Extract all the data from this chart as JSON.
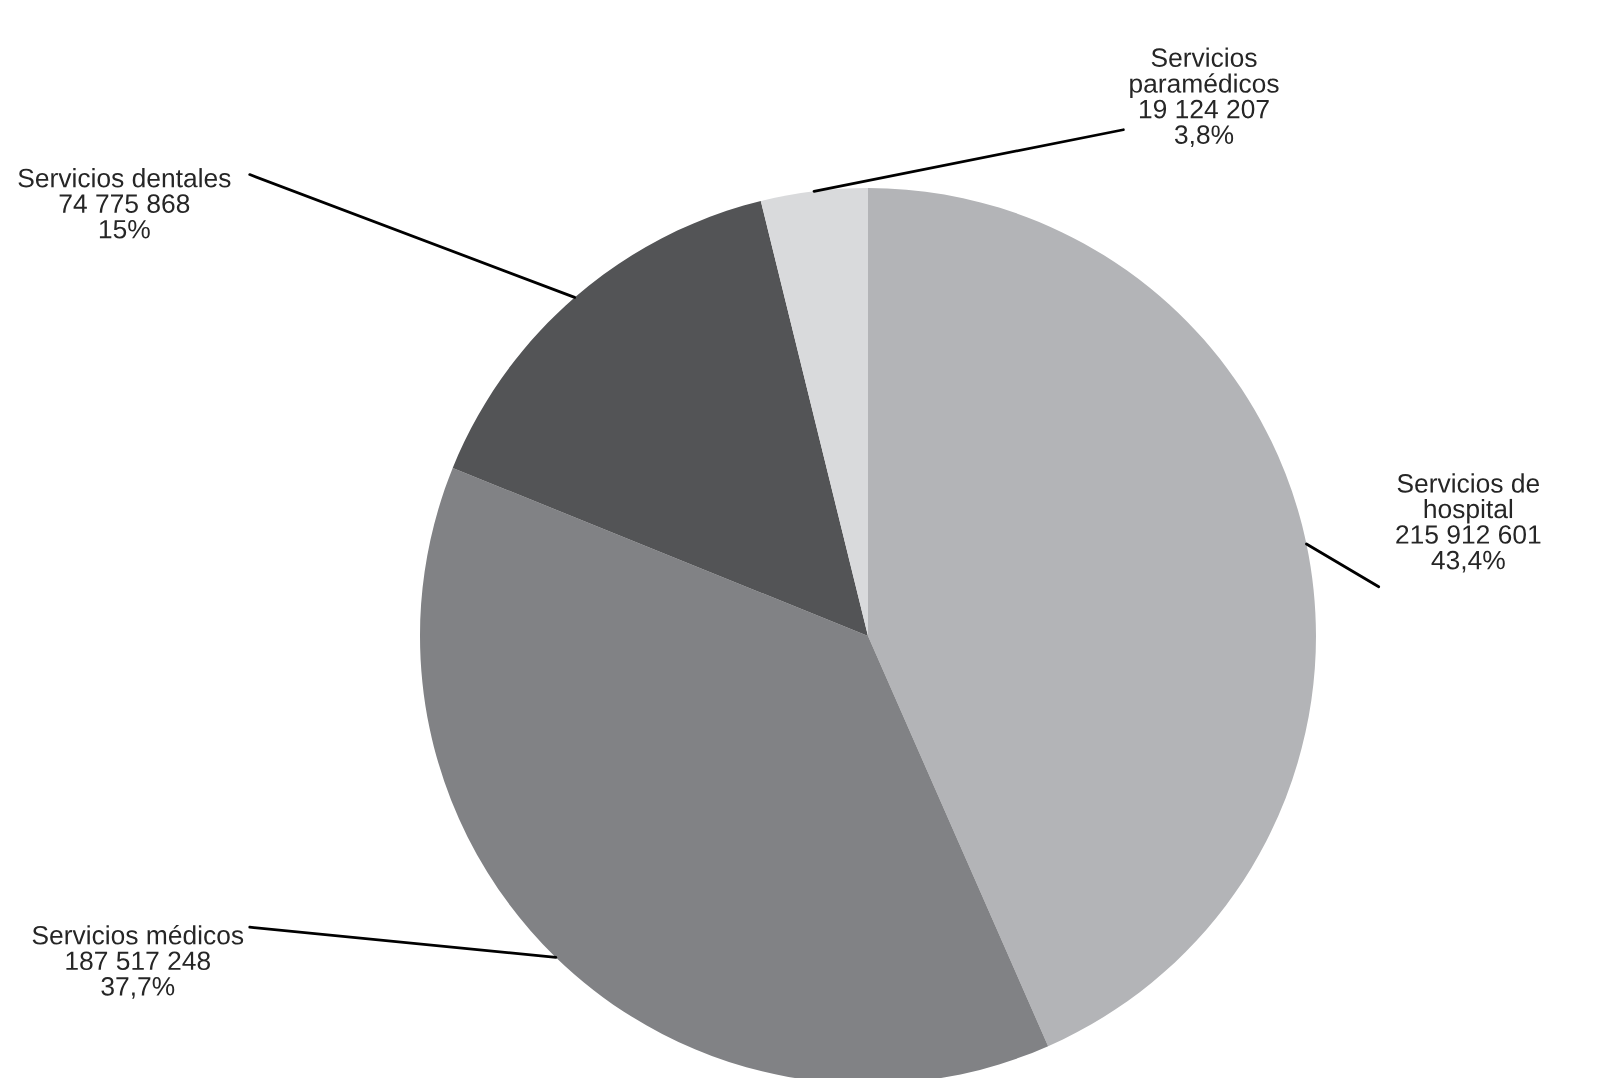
{
  "chart_data": {
    "type": "pie",
    "categories": [
      "Servicios de\nhospital",
      "Servicios médicos",
      "Servicios dentales",
      "Servicios\nparamédicos"
    ],
    "values": [
      215912601,
      187517248,
      74775868,
      19124207
    ],
    "value_labels": [
      "215 912 601\n43,4%",
      "187 517 248\n37,7%",
      "74 775 868\n15%",
      "19 124 207\n3,8%"
    ],
    "colors": [
      "#b3b4b7",
      "#818285",
      "#535456",
      "#d9dadc"
    ],
    "legend": false
  }
}
